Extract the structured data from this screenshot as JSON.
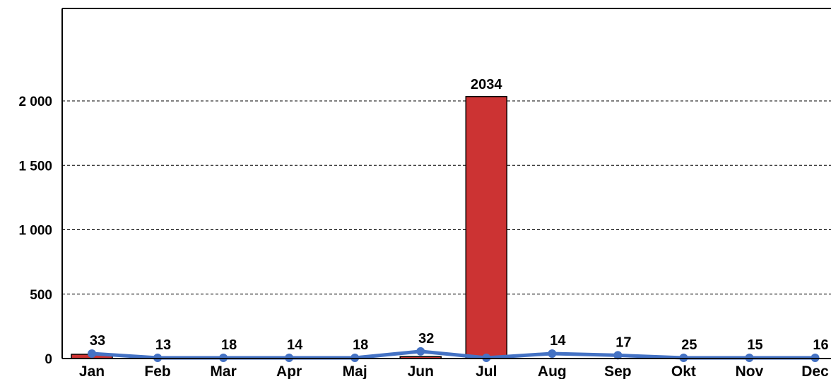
{
  "chart_data": {
    "type": "bar",
    "title": "",
    "xlabel": "",
    "ylabel": "",
    "categories": [
      "Jan",
      "Feb",
      "Mar",
      "Apr",
      "Maj",
      "Jun",
      "Jul",
      "Aug",
      "Sep",
      "Okt",
      "Nov",
      "Dec"
    ],
    "yticks": [
      {
        "value": 0,
        "label": "0"
      },
      {
        "value": 500,
        "label": "500"
      },
      {
        "value": 1000,
        "label": "1 000"
      },
      {
        "value": 1500,
        "label": "1 500"
      },
      {
        "value": 2000,
        "label": "2 000"
      }
    ],
    "ylim": [
      0,
      2700
    ],
    "grid": true,
    "legend": "none",
    "series": [
      {
        "type": "bar",
        "color": "#cc3333",
        "values": [
          33,
          0,
          0,
          0,
          0,
          15,
          2034,
          0,
          0,
          0,
          0,
          0
        ]
      },
      {
        "type": "line",
        "color": "#4472c4",
        "values": [
          33,
          13,
          18,
          14,
          18,
          32,
          0,
          14,
          17,
          25,
          15,
          16
        ],
        "plot_values": [
          33,
          0,
          0,
          0,
          0,
          50,
          0,
          33,
          20,
          0,
          0,
          0
        ],
        "labels": [
          "33",
          "13",
          "18",
          "14",
          "18",
          "32",
          "",
          "14",
          "17",
          "25",
          "15",
          "16"
        ]
      }
    ],
    "bar_labels": [
      "",
      "",
      "",
      "",
      "",
      "",
      "2034",
      "",
      "",
      "",
      "",
      ""
    ]
  }
}
